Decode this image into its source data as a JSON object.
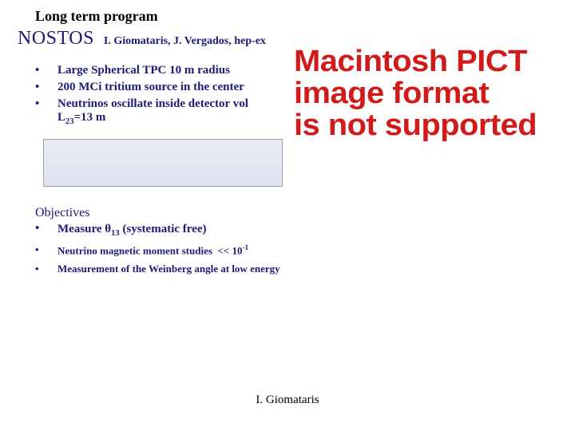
{
  "title": "Long term program",
  "project": "NOSTOS",
  "authors": "I. Giomataris, J. Vergados, hep-ex",
  "bullets": [
    {
      "text": "Large Spherical TPC 10 m radius"
    },
    {
      "text": "200 MCi tritium source in the center"
    },
    {
      "text_html": "Neutrinos oscillate inside detector vol<br>L<span class='sub'>23</span>=13 m"
    }
  ],
  "objectives_head": "Objectives",
  "objectives": [
    {
      "size": "normal",
      "text_html": "Measure <span class='theta'>θ</span><span class='sub'>13</span> (systematic free)"
    },
    {
      "size": "small",
      "text_html": "Neutrino magnetic moment studies &nbsp;&lt;&lt; 10<span class='sup'>-1</span>"
    },
    {
      "size": "small",
      "text_html": "Measurement of the Weinberg angle at low energy"
    }
  ],
  "pict_lines": [
    "Macintosh PICT",
    "image format",
    "is not supported"
  ],
  "footer": "I. Giomataris",
  "colors": {
    "page_bg": "#ffffff",
    "body_text": "#1d1a78",
    "title_text": "#000000",
    "pict_text": "#d11a1a",
    "formula_border": "#9aa0b8",
    "formula_bg_top": "#e9ebf3",
    "formula_bg_bottom": "#dfe2ee"
  }
}
